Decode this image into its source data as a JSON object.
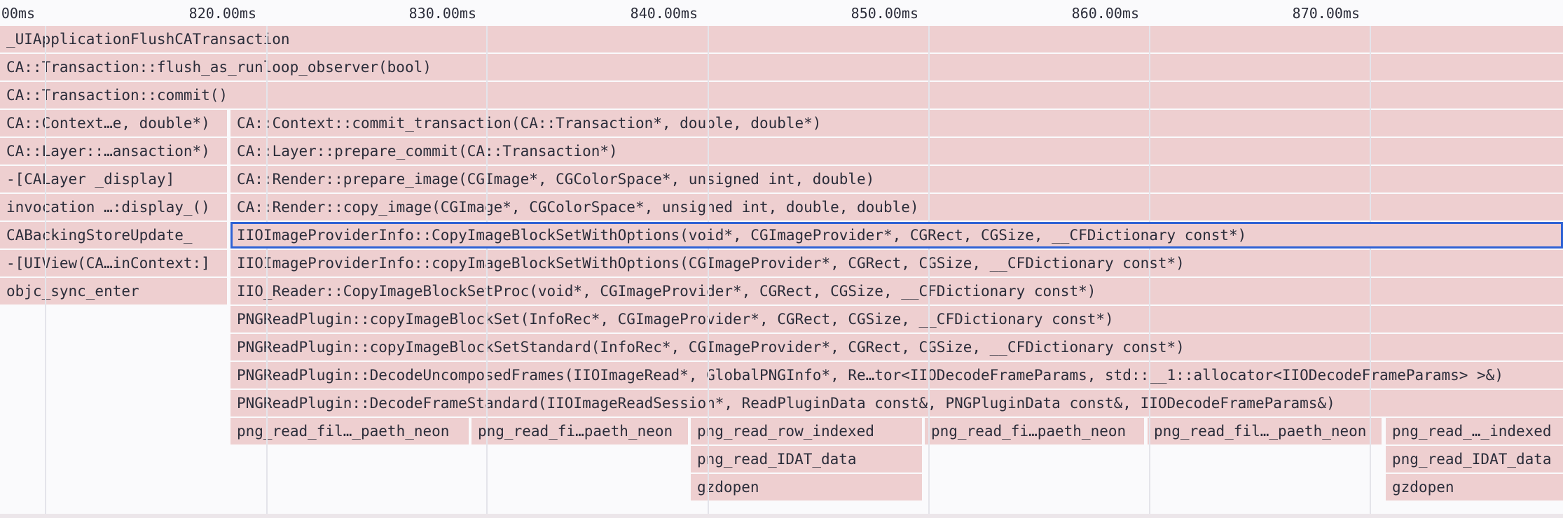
{
  "ruler": {
    "ticks": [
      "00ms",
      "820.00ms",
      "830.00ms",
      "840.00ms",
      "850.00ms",
      "860.00ms",
      "870.00ms"
    ]
  },
  "colors": {
    "frame": "#eecfd0",
    "selected_border": "#2f62d4",
    "text": "#2b2d3a",
    "grid": "#e4e4ea"
  },
  "flame": {
    "rows": [
      [
        "_UIApplicationFlushCATransaction"
      ],
      [
        "CA::Transaction::flush_as_runloop_observer(bool)"
      ],
      [
        "CA::Transaction::commit()"
      ],
      [
        "CA::Context…e, double*)",
        "CA::Context::commit_transaction(CA::Transaction*, double, double*)"
      ],
      [
        "CA::Layer::…ansaction*)",
        "CA::Layer::prepare_commit(CA::Transaction*)"
      ],
      [
        "-[CALayer _display]",
        "CA::Render::prepare_image(CGImage*, CGColorSpace*, unsigned int, double)"
      ],
      [
        "invocation …:display_()",
        "CA::Render::copy_image(CGImage*, CGColorSpace*, unsigned int, double, double)"
      ],
      [
        "CABackingStoreUpdate_",
        "IIOImageProviderInfo::CopyImageBlockSetWithOptions(void*, CGImageProvider*, CGRect, CGSize, __CFDictionary const*)"
      ],
      [
        "-[UIView(CA…inContext:]",
        "IIOImageProviderInfo::copyImageBlockSetWithOptions(CGImageProvider*, CGRect, CGSize, __CFDictionary const*)"
      ],
      [
        "objc_sync_enter",
        "IIO_Reader::CopyImageBlockSetProc(void*, CGImageProvider*, CGRect, CGSize, __CFDictionary const*)"
      ],
      [
        "PNGReadPlugin::copyImageBlockSet(InfoRec*, CGImageProvider*, CGRect, CGSize, __CFDictionary const*)"
      ],
      [
        "PNGReadPlugin::copyImageBlockSetStandard(InfoRec*, CGImageProvider*, CGRect, CGSize, __CFDictionary const*)"
      ],
      [
        "PNGReadPlugin::DecodeUncomposedFrames(IIOImageRead*, GlobalPNGInfo*, Re…tor<IIODecodeFrameParams, std::__1::allocator<IIODecodeFrameParams> >&)"
      ],
      [
        "PNGReadPlugin::DecodeFrameStandard(IIOImageReadSession*, ReadPluginData const&, PNGPluginData const&, IIODecodeFrameParams&)"
      ],
      [
        "png_read_fil…_paeth_neon",
        "png_read_fi…paeth_neon",
        "png_read_row_indexed",
        "png_read_fi…paeth_neon",
        "png_read_fil…_paeth_neon",
        "png_read_…_indexed"
      ],
      [
        "png_read_IDAT_data",
        "png_read_IDAT_data"
      ],
      [
        "gzdopen",
        "gzdopen"
      ]
    ],
    "selected": "IIOImageProviderInfo::CopyImageBlockSetWithOptions(void*, CGImageProvider*, CGRect, CGSize, __CFDictionary const*)"
  }
}
